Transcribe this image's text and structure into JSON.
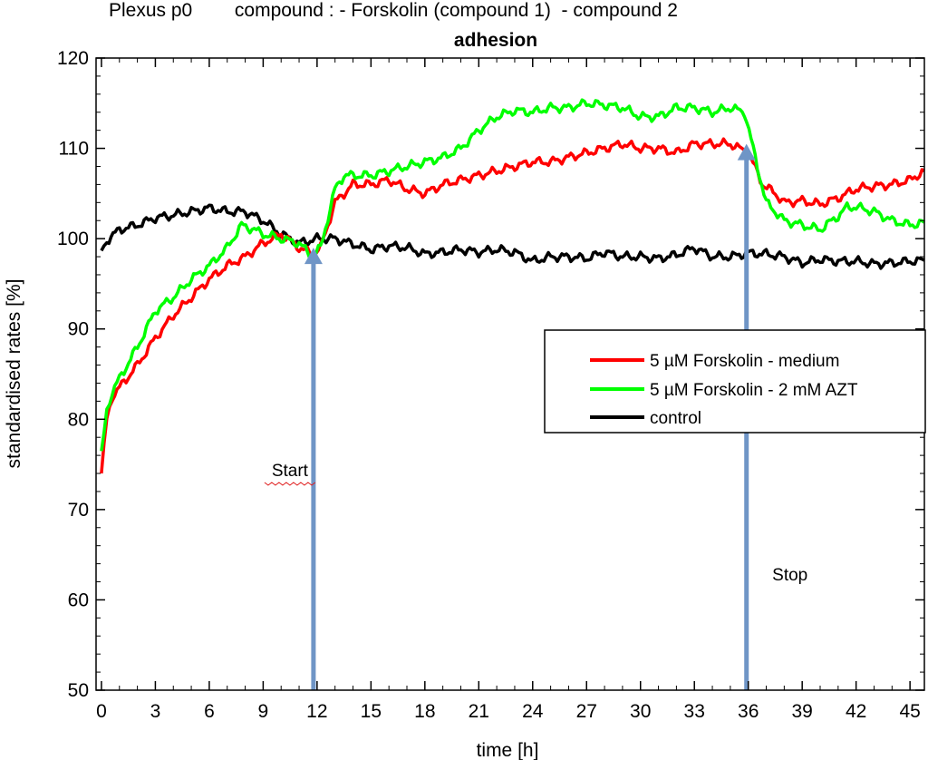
{
  "chart_data": {
    "type": "line",
    "title_line1": "Plexus p0        compound : - Forskolin (compound 1)  - compound 2",
    "title": "adhesion",
    "xlabel": "time [h]",
    "ylabel": "standardised rates [%]",
    "xlim": [
      -0.3,
      45.8
    ],
    "ylim": [
      50,
      120
    ],
    "x_ticks": [
      0,
      3,
      6,
      9,
      12,
      15,
      18,
      21,
      24,
      27,
      30,
      33,
      36,
      39,
      42,
      45
    ],
    "y_ticks": [
      50,
      60,
      70,
      80,
      90,
      100,
      110,
      120
    ],
    "grid": false,
    "legend_position": "right",
    "series": [
      {
        "name": "5 µM Forskolin - medium",
        "color": "#ff0000",
        "points": [
          [
            0,
            74
          ],
          [
            0.3,
            80
          ],
          [
            0.6,
            82.5
          ],
          [
            1,
            83.5
          ],
          [
            2,
            86
          ],
          [
            3,
            89
          ],
          [
            4,
            91.5
          ],
          [
            5,
            93.5
          ],
          [
            6,
            95.5
          ],
          [
            7,
            97
          ],
          [
            8,
            98
          ],
          [
            9,
            99.5
          ],
          [
            10,
            100.5
          ],
          [
            11,
            99
          ],
          [
            11.7,
            98.3
          ],
          [
            12.2,
            99
          ],
          [
            13,
            104
          ],
          [
            14,
            106
          ],
          [
            15,
            106
          ],
          [
            16,
            106.5
          ],
          [
            17,
            105.5
          ],
          [
            18,
            105
          ],
          [
            19,
            106
          ],
          [
            20,
            106.5
          ],
          [
            21,
            107
          ],
          [
            22,
            107.5
          ],
          [
            23,
            108
          ],
          [
            24,
            108.5
          ],
          [
            25,
            108.5
          ],
          [
            26,
            109
          ],
          [
            27,
            109.5
          ],
          [
            28,
            110
          ],
          [
            29,
            110.5
          ],
          [
            30,
            110
          ],
          [
            31,
            110
          ],
          [
            32,
            109.5
          ],
          [
            33,
            110.5
          ],
          [
            34,
            110.5
          ],
          [
            35,
            110.5
          ],
          [
            36,
            109.5
          ],
          [
            36.8,
            106
          ],
          [
            37.5,
            105
          ],
          [
            38,
            104
          ],
          [
            39,
            104.2
          ],
          [
            40,
            103.8
          ],
          [
            41,
            104.5
          ],
          [
            42,
            105.5
          ],
          [
            43,
            105.8
          ],
          [
            44,
            106
          ],
          [
            45,
            106.5
          ],
          [
            45.8,
            107.5
          ]
        ]
      },
      {
        "name": "5 µM Forskolin - 2 mM AZT",
        "color": "#00ff00",
        "points": [
          [
            0,
            76
          ],
          [
            0.3,
            81
          ],
          [
            0.6,
            83
          ],
          [
            1,
            84.5
          ],
          [
            2,
            88
          ],
          [
            3,
            92
          ],
          [
            4,
            93.5
          ],
          [
            5,
            95.5
          ],
          [
            6,
            97
          ],
          [
            7,
            99
          ],
          [
            7.8,
            101.5
          ],
          [
            8.5,
            101
          ],
          [
            9,
            100.5
          ],
          [
            10,
            100
          ],
          [
            11,
            99.5
          ],
          [
            11.7,
            98
          ],
          [
            12.2,
            99
          ],
          [
            13,
            105.5
          ],
          [
            13.5,
            107
          ],
          [
            14,
            107
          ],
          [
            15,
            107
          ],
          [
            16,
            107.5
          ],
          [
            17,
            108
          ],
          [
            18,
            108.5
          ],
          [
            19,
            109
          ],
          [
            20,
            110
          ],
          [
            21,
            112
          ],
          [
            22,
            113.5
          ],
          [
            23,
            114.2
          ],
          [
            24,
            114
          ],
          [
            25,
            114.5
          ],
          [
            26,
            114.5
          ],
          [
            27,
            115
          ],
          [
            28,
            114.8
          ],
          [
            29,
            114.5
          ],
          [
            30,
            113.5
          ],
          [
            31,
            113.5
          ],
          [
            32,
            114.5
          ],
          [
            33,
            114.5
          ],
          [
            34,
            114
          ],
          [
            35,
            114.5
          ],
          [
            35.8,
            114
          ],
          [
            36.5,
            108
          ],
          [
            37,
            104
          ],
          [
            38,
            102
          ],
          [
            39,
            101.5
          ],
          [
            40,
            101
          ],
          [
            41,
            102.5
          ],
          [
            41.5,
            103.5
          ],
          [
            42,
            103.5
          ],
          [
            43,
            103
          ],
          [
            44,
            102
          ],
          [
            45,
            101.5
          ],
          [
            45.8,
            101.8
          ]
        ]
      },
      {
        "name": "control",
        "color": "#000000",
        "points": [
          [
            0,
            98.5
          ],
          [
            0.3,
            99.8
          ],
          [
            1,
            101
          ],
          [
            2,
            101.5
          ],
          [
            3,
            102.3
          ],
          [
            4,
            102.6
          ],
          [
            5,
            103
          ],
          [
            6,
            103.4
          ],
          [
            7,
            103
          ],
          [
            8,
            103
          ],
          [
            9,
            102
          ],
          [
            10,
            100.5
          ],
          [
            10.5,
            100
          ],
          [
            11,
            99.5
          ],
          [
            12,
            100
          ],
          [
            13,
            100
          ],
          [
            14,
            99.4
          ],
          [
            15,
            98.8
          ],
          [
            16,
            99.2
          ],
          [
            17,
            99
          ],
          [
            18,
            98.3
          ],
          [
            19,
            98.5
          ],
          [
            20,
            98.8
          ],
          [
            21,
            98.5
          ],
          [
            22,
            98.8
          ],
          [
            23,
            98.5
          ],
          [
            24,
            97.5
          ],
          [
            25,
            98
          ],
          [
            26,
            98
          ],
          [
            27,
            97.8
          ],
          [
            28,
            98.5
          ],
          [
            29,
            98
          ],
          [
            30,
            98
          ],
          [
            31,
            97.8
          ],
          [
            32,
            98.2
          ],
          [
            33,
            99
          ],
          [
            34,
            98
          ],
          [
            35,
            98
          ],
          [
            36,
            98.4
          ],
          [
            37,
            98.3
          ],
          [
            38,
            98
          ],
          [
            39,
            97.3
          ],
          [
            40,
            97.7
          ],
          [
            41,
            97.5
          ],
          [
            42,
            97.5
          ],
          [
            43,
            97.2
          ],
          [
            44,
            97.3
          ],
          [
            45,
            97.5
          ],
          [
            45.8,
            97.6
          ]
        ]
      }
    ],
    "annotations": [
      {
        "text": "Start",
        "x": 11.8,
        "y_from": 50,
        "y_to": 99
      },
      {
        "text": "Stop",
        "x": 35.9,
        "y_from": 50,
        "y_to": 110.5
      }
    ],
    "arrow_color": "#6f95c6"
  }
}
